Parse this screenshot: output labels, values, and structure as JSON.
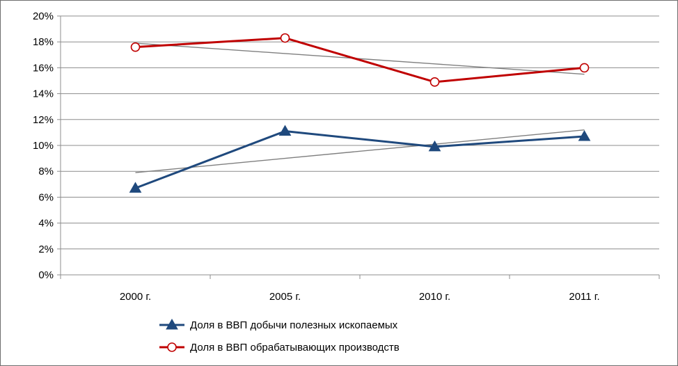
{
  "chart_data": {
    "type": "line",
    "categories": [
      "2000 г.",
      "2005 г.",
      "2010 г.",
      "2011 г."
    ],
    "y_ticks": [
      "0%",
      "2%",
      "4%",
      "6%",
      "8%",
      "10%",
      "12%",
      "14%",
      "16%",
      "18%",
      "20%"
    ],
    "ylim": [
      0,
      20
    ],
    "grid": true,
    "legend_position": "bottom",
    "series": [
      {
        "name": "Доля в ВВП добычи полезных ископаемых",
        "values": [
          6.7,
          11.1,
          9.9,
          10.7
        ],
        "color": "#1f497d",
        "marker": "triangle",
        "trendline": [
          7.9,
          9.0,
          10.1,
          11.2
        ]
      },
      {
        "name": "Доля в ВВП обрабатывающих производств",
        "values": [
          17.6,
          18.3,
          14.9,
          16.0
        ],
        "color": "#c00000",
        "marker": "circle",
        "trendline": [
          17.9,
          17.1,
          16.3,
          15.5
        ]
      }
    ],
    "trendline_color": "#7f7f7f"
  }
}
